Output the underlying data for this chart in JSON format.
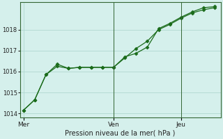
{
  "xlabel": "Pression niveau de la mer( hPa )",
  "background_color": "#d5f0ec",
  "grid_color": "#b0d8d0",
  "line_color": "#1a6b1a",
  "ylim": [
    1013.8,
    1019.3
  ],
  "yticks": [
    1014,
    1015,
    1016,
    1017,
    1018
  ],
  "x_ticks_pos": [
    0,
    8,
    14
  ],
  "x_ticks_labels": [
    "Mer",
    "Ven",
    "Jeu"
  ],
  "n_points": 18,
  "series1_x": [
    0,
    1,
    2,
    3,
    4,
    5,
    6,
    7,
    8,
    9,
    10,
    11,
    12,
    13,
    14,
    15,
    16,
    17
  ],
  "series1_y": [
    1014.15,
    1014.65,
    1015.85,
    1016.25,
    1016.15,
    1016.2,
    1016.2,
    1016.2,
    1016.2,
    1016.65,
    1017.1,
    1017.45,
    1018.0,
    1018.25,
    1018.55,
    1018.8,
    1018.95,
    1019.05
  ],
  "series2_x": [
    0,
    1,
    2,
    3,
    4,
    5,
    6,
    7,
    8,
    9,
    10,
    11,
    12,
    13,
    14,
    15,
    16,
    17
  ],
  "series2_y": [
    1014.15,
    1014.65,
    1015.85,
    1016.35,
    1016.15,
    1016.2,
    1016.2,
    1016.2,
    1016.2,
    1016.7,
    1016.87,
    1017.17,
    1018.05,
    1018.3,
    1018.6,
    1018.85,
    1019.05,
    1019.1
  ],
  "vline_pos": 8,
  "marker": "D",
  "marker_size": 2.5,
  "linewidth": 0.9,
  "spine_color": "#336633",
  "tick_labelsize": 6,
  "xlabel_fontsize": 7
}
